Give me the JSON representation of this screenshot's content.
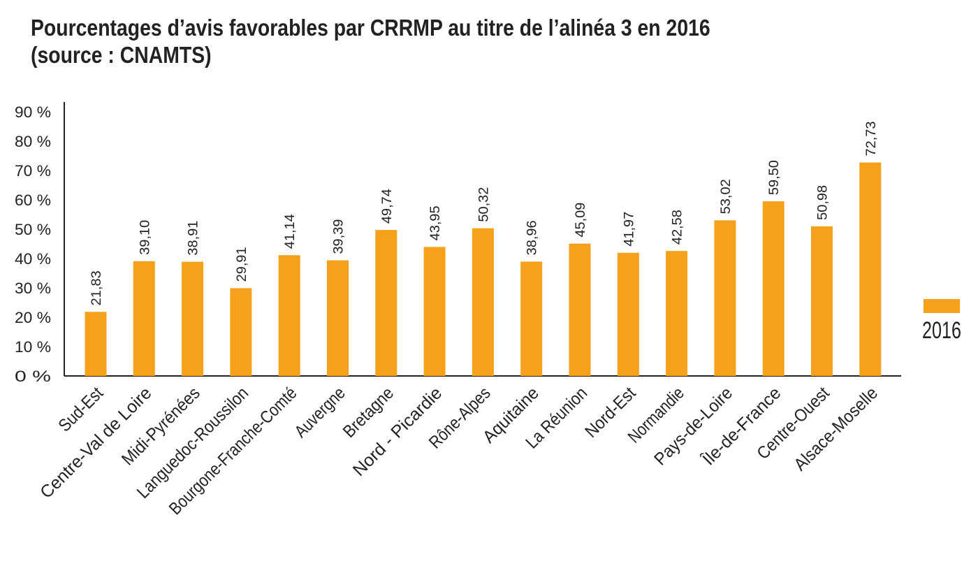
{
  "chart_data": {
    "type": "bar",
    "title_line1": "Pourcentages d’avis favorables par CRRMP au titre de l’alinéa 3 en 2016",
    "title_line2": "(source : CNAMTS)",
    "xlabel": "",
    "ylabel": "",
    "ylim": [
      0,
      90
    ],
    "y_ticks": [
      0,
      10,
      20,
      30,
      40,
      50,
      60,
      70,
      80,
      90
    ],
    "y_tick_labels": [
      "0 %",
      "10 %",
      "20 %",
      "30 %",
      "40 %",
      "50 %",
      "60 %",
      "70 %",
      "80 %",
      "90 %"
    ],
    "grid": false,
    "legend_position": "right",
    "categories": [
      "Sud-Est",
      "Centre-Val de Loire",
      "Midi-Pyrénées",
      "Languedoc-Roussilon",
      "Bourgone-Franche-Comté",
      "Auvergne",
      "Bretagne",
      "Nord - Picardie",
      "Rône-Alpes",
      "Aquitaine",
      "La Réunion",
      "Nord-Est",
      "Normandie",
      "Pays-de-Loire",
      "Île-de-France",
      "Centre-Ouest",
      "Alsace-Moselle"
    ],
    "series": [
      {
        "name": "2016",
        "color": "#F6A01C",
        "values": [
          21.83,
          39.1,
          38.91,
          29.91,
          41.14,
          39.39,
          49.74,
          43.95,
          50.32,
          38.96,
          45.09,
          41.97,
          42.58,
          53.02,
          59.5,
          50.98,
          72.73
        ],
        "value_labels": [
          "21,83",
          "39,10",
          "38,91",
          "29,91",
          "41,14",
          "39,39",
          "49,74",
          "43,95",
          "50,32",
          "38,96",
          "45,09",
          "41,97",
          "42,58",
          "53,02",
          "59,50",
          "50,98",
          "72,73"
        ]
      }
    ]
  }
}
